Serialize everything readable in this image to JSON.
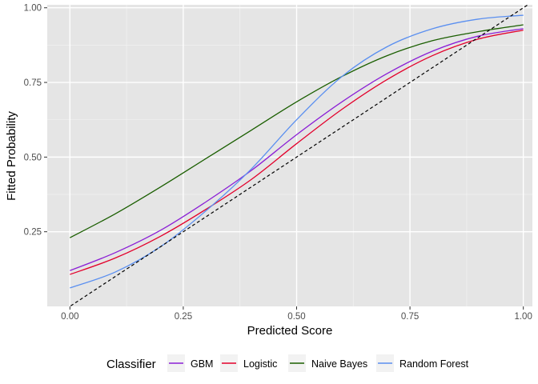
{
  "chart_data": {
    "type": "line",
    "title": "",
    "xlabel": "Predicted Score",
    "ylabel": "Fitted Probability",
    "xlim": [
      -0.05,
      1.02
    ],
    "ylim": [
      0.0,
      1.01
    ],
    "xticks": [
      0.0,
      0.25,
      0.5,
      0.75,
      1.0
    ],
    "xtick_labels": [
      "0.00",
      "0.25",
      "0.50",
      "0.75",
      "1.00"
    ],
    "yticks": [
      0.25,
      0.5,
      0.75,
      1.0
    ],
    "ytick_labels": [
      "0.25",
      "0.50",
      "0.75",
      "1.00"
    ],
    "grid": true,
    "legend": {
      "title": "Classifier",
      "position": "bottom"
    },
    "reference_line": {
      "style": "dashed",
      "color": "#000000",
      "x": [
        -0.05,
        1.02
      ],
      "y": [
        -0.05,
        1.02
      ]
    },
    "series": [
      {
        "name": "GBM",
        "color": "#8b1fd6",
        "x": [
          0.0,
          0.1,
          0.2,
          0.3,
          0.4,
          0.5,
          0.6,
          0.7,
          0.8,
          0.9,
          1.0
        ],
        "y": [
          0.12,
          0.18,
          0.255,
          0.35,
          0.455,
          0.575,
          0.685,
          0.78,
          0.855,
          0.905,
          0.93
        ]
      },
      {
        "name": "Logistic",
        "color": "#e3002b",
        "x": [
          0.0,
          0.1,
          0.2,
          0.3,
          0.4,
          0.5,
          0.6,
          0.7,
          0.8,
          0.9,
          1.0
        ],
        "y": [
          0.107,
          0.162,
          0.235,
          0.325,
          0.425,
          0.545,
          0.66,
          0.76,
          0.84,
          0.895,
          0.925
        ]
      },
      {
        "name": "Naive Bayes",
        "color": "#1a5e00",
        "x": [
          0.0,
          0.1,
          0.2,
          0.3,
          0.4,
          0.5,
          0.6,
          0.7,
          0.8,
          0.9,
          1.0
        ],
        "y": [
          0.23,
          0.31,
          0.4,
          0.495,
          0.59,
          0.685,
          0.77,
          0.84,
          0.89,
          0.92,
          0.943
        ]
      },
      {
        "name": "Random Forest",
        "color": "#5a8ff0",
        "x": [
          0.0,
          0.1,
          0.2,
          0.3,
          0.4,
          0.5,
          0.6,
          0.7,
          0.8,
          0.9,
          1.0
        ],
        "y": [
          0.062,
          0.115,
          0.2,
          0.32,
          0.46,
          0.625,
          0.77,
          0.87,
          0.93,
          0.962,
          0.975
        ]
      }
    ]
  }
}
